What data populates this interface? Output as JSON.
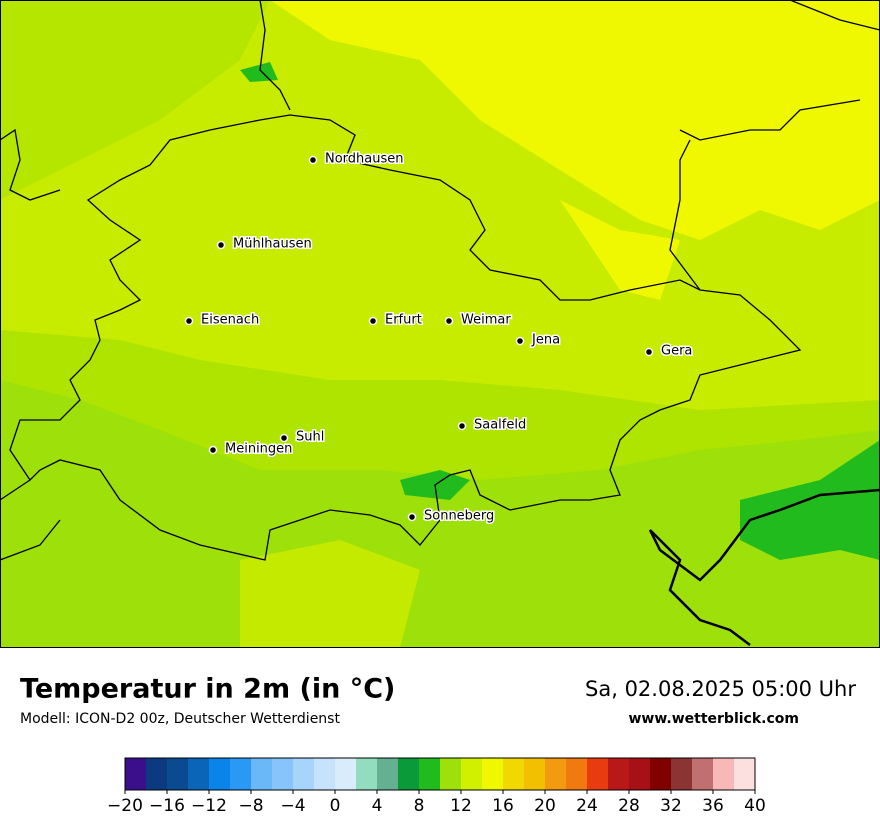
{
  "map": {
    "cities": [
      "Nordhausen",
      "Mühlhausen",
      "Eisenach",
      "Erfurt",
      "Weimar",
      "Jena",
      "Gera",
      "Suhl",
      "Meiningen",
      "Saalfeld",
      "Sonneberg"
    ]
  },
  "footer": {
    "title": "Temperatur in 2m (in °C)",
    "subtitle": "Modell: ICON-D2 00z, Deutscher Wetterdienst",
    "datetime": "Sa, 02.08.2025 05:00 Uhr",
    "website": "www.wetterblick.com"
  },
  "colorbar": {
    "lim": [
      -20,
      40
    ],
    "colors": [
      "#3b0f8c",
      "#0c3a80",
      "#0a4a90",
      "#0a64b8",
      "#0a84e8",
      "#2a98f5",
      "#6ab8f8",
      "#86c4fa",
      "#a6d4fb",
      "#c6e2fc",
      "#d8ecfc",
      "#92dcc0",
      "#64b090",
      "#0a9a3a",
      "#22bb1e",
      "#9ee00a",
      "#d0f000",
      "#f0f800",
      "#f0d800",
      "#f2c000",
      "#f29a10",
      "#f07a10",
      "#e83c10",
      "#b81818",
      "#a81018",
      "#800000",
      "#8c3434",
      "#c07070",
      "#f8b8b8",
      "#fce0e0"
    ],
    "ticks": [
      {
        "value": -20,
        "label": "−20"
      },
      {
        "value": -16,
        "label": "−16"
      },
      {
        "value": -12,
        "label": "−12"
      },
      {
        "value": -8,
        "label": "−8"
      },
      {
        "value": -4,
        "label": "−4"
      },
      0,
      4,
      8,
      12,
      16,
      20,
      24,
      28,
      32,
      36,
      40
    ]
  }
}
